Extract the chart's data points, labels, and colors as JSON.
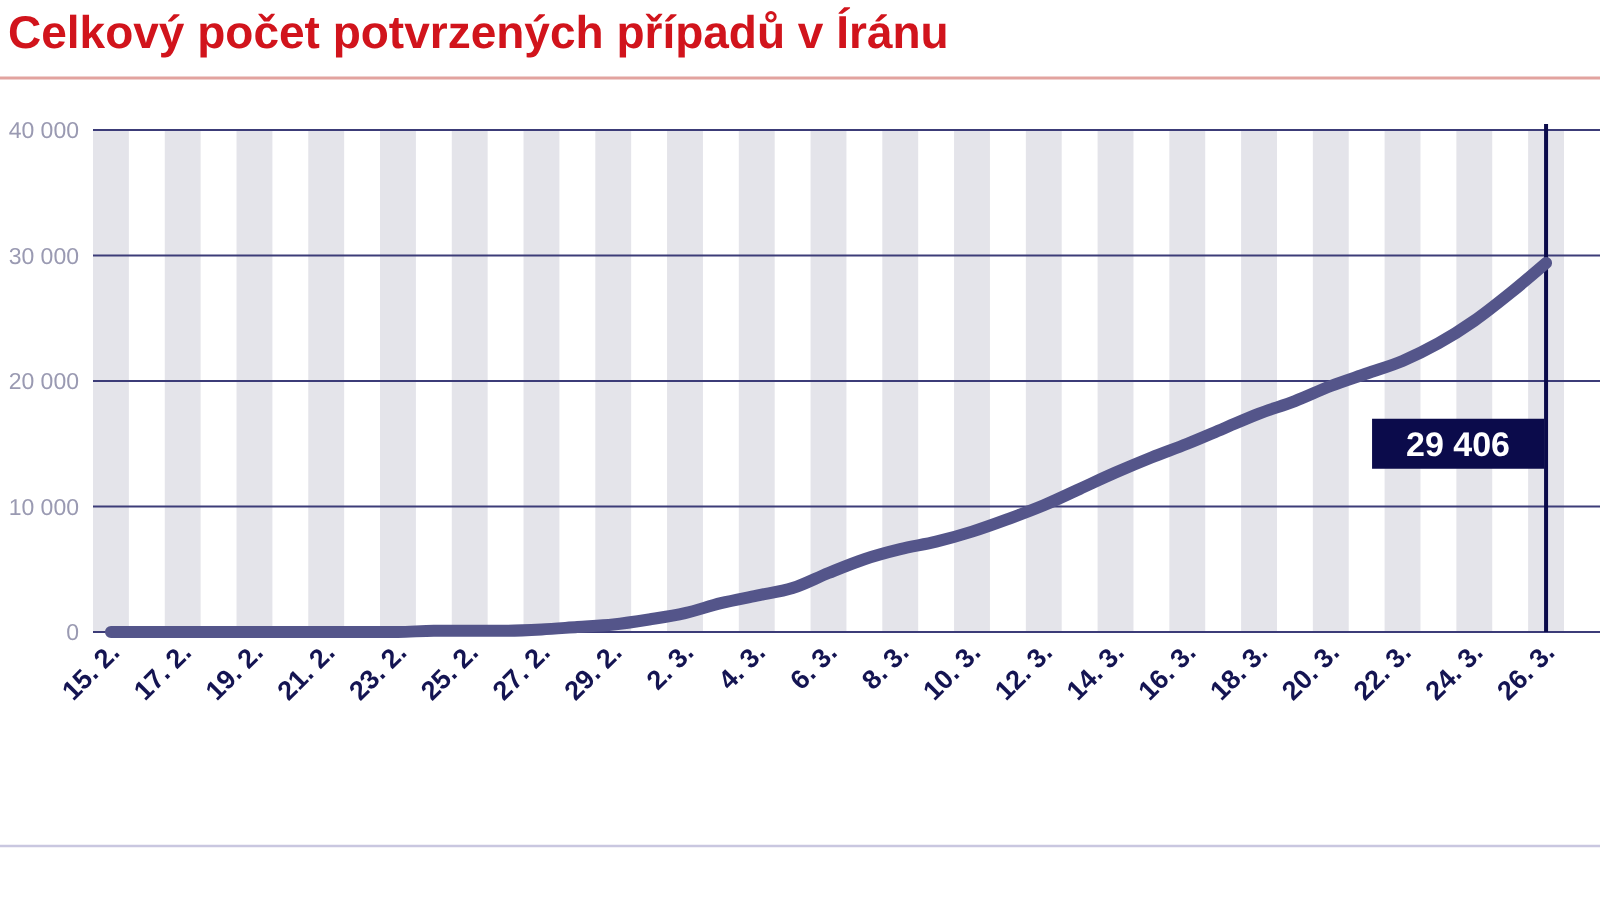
{
  "chart_data": {
    "type": "line",
    "title": "Celkový počet potvrzených případů v Íránu",
    "categories": [
      "15. 2.",
      null,
      "17. 2.",
      null,
      "19. 2.",
      null,
      "21. 2.",
      null,
      "23. 2.",
      null,
      "25. 2.",
      null,
      "27. 2.",
      null,
      "29. 2.",
      null,
      "2. 3.",
      null,
      "4. 3.",
      null,
      "6. 3.",
      null,
      "8. 3.",
      null,
      "10. 3.",
      null,
      "12. 3.",
      null,
      "14. 3.",
      null,
      "16. 3.",
      null,
      "18. 3.",
      null,
      "20. 3.",
      null,
      "22. 3.",
      null,
      "24. 3.",
      null,
      "26. 3."
    ],
    "series": [
      {
        "color": "#54558a",
        "values": [
          0,
          0,
          0,
          0,
          0,
          0,
          0,
          0,
          0,
          100,
          100,
          100,
          200,
          400,
          600,
          1000,
          1500,
          2300,
          2900,
          3500,
          4700,
          5800,
          6600,
          7200,
          8000,
          9000,
          10100,
          11400,
          12700,
          13900,
          15000,
          16200,
          17400,
          18400,
          19600,
          20600,
          21600,
          23000,
          24800,
          27000,
          29406
        ]
      }
    ],
    "ylim": [
      0,
      40000
    ],
    "yticks": [
      0,
      {
        "value": 10000,
        "label": "10 000"
      },
      {
        "value": 20000,
        "label": "20 000"
      },
      {
        "value": 30000,
        "label": "30 000"
      },
      {
        "value": 40000,
        "label": "40 000"
      }
    ],
    "grid": "y",
    "bands": [
      {
        "axis": "x",
        "from": "15. 2.",
        "to": "15. 2.",
        "color": "#e4e4ea"
      },
      {
        "axis": "x",
        "from": "17. 2.",
        "to": "17. 2.",
        "color": "#e4e4ea"
      },
      {
        "axis": "x",
        "from": "19. 2.",
        "to": "19. 2.",
        "color": "#e4e4ea"
      },
      {
        "axis": "x",
        "from": "21. 2.",
        "to": "21. 2.",
        "color": "#e4e4ea"
      },
      {
        "axis": "x",
        "from": "23. 2.",
        "to": "23. 2.",
        "color": "#e4e4ea"
      },
      {
        "axis": "x",
        "from": "25. 2.",
        "to": "25. 2.",
        "color": "#e4e4ea"
      },
      {
        "axis": "x",
        "from": "27. 2.",
        "to": "27. 2.",
        "color": "#e4e4ea"
      },
      {
        "axis": "x",
        "from": "29. 2.",
        "to": "29. 2.",
        "color": "#e4e4ea"
      },
      {
        "axis": "x",
        "from": "2. 3.",
        "to": "2. 3.",
        "color": "#e4e4ea"
      },
      {
        "axis": "x",
        "from": "4. 3.",
        "to": "4. 3.",
        "color": "#e4e4ea"
      },
      {
        "axis": "x",
        "from": "6. 3.",
        "to": "6. 3.",
        "color": "#e4e4ea"
      },
      {
        "axis": "x",
        "from": "8. 3.",
        "to": "8. 3.",
        "color": "#e4e4ea"
      },
      {
        "axis": "x",
        "from": "10. 3.",
        "to": "10. 3.",
        "color": "#e4e4ea"
      },
      {
        "axis": "x",
        "from": "12. 3.",
        "to": "12. 3.",
        "color": "#e4e4ea"
      },
      {
        "axis": "x",
        "from": "14. 3.",
        "to": "14. 3.",
        "color": "#e4e4ea"
      },
      {
        "axis": "x",
        "from": "16. 3.",
        "to": "16. 3.",
        "color": "#e4e4ea"
      },
      {
        "axis": "x",
        "from": "18. 3.",
        "to": "18. 3.",
        "color": "#e4e4ea"
      },
      {
        "axis": "x",
        "from": "20. 3.",
        "to": "20. 3.",
        "color": "#e4e4ea"
      },
      {
        "axis": "x",
        "from": "22. 3.",
        "to": "22. 3.",
        "color": "#e4e4ea"
      },
      {
        "axis": "x",
        "from": "24. 3.",
        "to": "24. 3.",
        "color": "#e4e4ea"
      },
      {
        "axis": "x",
        "from": "26. 3.",
        "to": "26. 3.",
        "color": "#e4e4ea"
      }
    ],
    "ref_lines": [
      {
        "axis": "x",
        "value": "26. 3.",
        "label": "29 406",
        "color": "#0b0b4b"
      }
    ]
  }
}
